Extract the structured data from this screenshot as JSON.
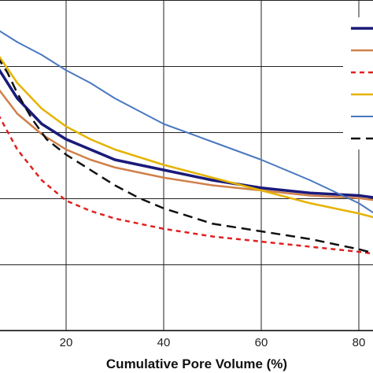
{
  "chart_data": {
    "type": "line",
    "xlabel": "Cumulative Pore Volume (%)",
    "ylabel": "",
    "title": "",
    "xlim": [
      0,
      84
    ],
    "x_ticks": [
      20,
      40,
      60,
      80
    ],
    "x_tick_labels": [
      "20",
      "40",
      "60",
      "80"
    ],
    "ylim": [
      0,
      1
    ],
    "grid": true,
    "legend_position": "top-right",
    "series": [
      {
        "color": "#1a1a7a",
        "dash": "solid",
        "width": 3.5,
        "x": [
          0,
          3,
          6,
          10,
          15,
          20,
          25,
          30,
          40,
          50,
          60,
          70,
          80,
          84
        ],
        "y": [
          0.74,
          0.71,
          0.66,
          0.6,
          0.55,
          0.52,
          0.5,
          0.48,
          0.46,
          0.44,
          0.425,
          0.415,
          0.41,
          0.405
        ]
      },
      {
        "color": "#d0804a",
        "dash": "solid",
        "width": 2.5,
        "x": [
          0,
          3,
          6,
          10,
          15,
          20,
          25,
          30,
          40,
          50,
          60,
          70,
          80,
          84
        ],
        "y": [
          0.7,
          0.67,
          0.62,
          0.57,
          0.53,
          0.5,
          0.48,
          0.465,
          0.445,
          0.43,
          0.42,
          0.41,
          0.405,
          0.4
        ]
      },
      {
        "color": "#e02020",
        "dash": "6,5",
        "width": 2.5,
        "x": [
          0,
          3,
          6,
          10,
          15,
          20,
          25,
          30,
          40,
          50,
          60,
          70,
          80,
          84
        ],
        "y": [
          0.69,
          0.64,
          0.57,
          0.5,
          0.44,
          0.4,
          0.38,
          0.365,
          0.345,
          0.33,
          0.32,
          0.31,
          0.3,
          0.295
        ]
      },
      {
        "color": "#e5b300",
        "dash": "solid",
        "width": 2.5,
        "x": [
          0,
          5,
          10,
          15,
          20,
          25,
          30,
          40,
          50,
          60,
          70,
          80,
          84
        ],
        "y": [
          0.79,
          0.7,
          0.63,
          0.58,
          0.545,
          0.52,
          0.5,
          0.47,
          0.445,
          0.42,
          0.395,
          0.375,
          0.365
        ]
      },
      {
        "color": "#4a78c0",
        "dash": "solid",
        "width": 2,
        "x": [
          0,
          5,
          10,
          15,
          20,
          25,
          30,
          40,
          50,
          60,
          70,
          80,
          84
        ],
        "y": [
          0.77,
          0.74,
          0.71,
          0.685,
          0.655,
          0.63,
          0.6,
          0.55,
          0.515,
          0.48,
          0.44,
          0.395,
          0.37
        ]
      },
      {
        "color": "#111111",
        "dash": "12,7",
        "width": 2.5,
        "x": [
          0,
          4,
          8,
          10,
          13,
          16,
          20,
          25,
          30,
          35,
          40,
          50,
          60,
          70,
          80,
          84
        ],
        "y": [
          0.75,
          0.71,
          0.65,
          0.61,
          0.56,
          0.52,
          0.49,
          0.46,
          0.43,
          0.405,
          0.385,
          0.355,
          0.34,
          0.325,
          0.305,
          0.295
        ]
      }
    ]
  }
}
